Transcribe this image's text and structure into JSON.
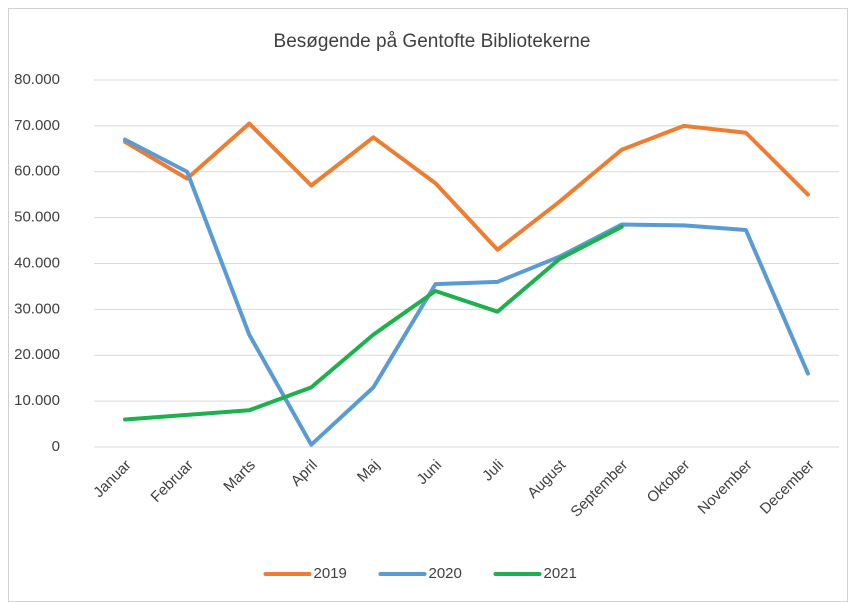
{
  "chart_data": {
    "type": "line",
    "title": "Besøgende på Gentofte Bibliotekerne",
    "categories": [
      "Januar",
      "Februar",
      "Marts",
      "April",
      "Maj",
      "Juni",
      "Juli",
      "August",
      "September",
      "Oktober",
      "November",
      "December"
    ],
    "series": [
      {
        "name": "2019",
        "color": "#ed7d31",
        "values": [
          66500,
          58500,
          70500,
          57000,
          67500,
          57500,
          43000,
          53500,
          64800,
          70000,
          68500,
          55000
        ]
      },
      {
        "name": "2020",
        "color": "#5b9bd5",
        "values": [
          67000,
          60000,
          24500,
          500,
          13000,
          35500,
          36000,
          41500,
          48500,
          48300,
          47300,
          16000
        ]
      },
      {
        "name": "2021",
        "color": "#1db04d",
        "values": [
          6000,
          7000,
          8000,
          13000,
          24500,
          34000,
          29500,
          41000,
          48000,
          null,
          null,
          null
        ]
      }
    ],
    "ylim": [
      0,
      80000
    ],
    "yticks": [
      0,
      {
        "value": 10000,
        "label": "10.000"
      },
      {
        "value": 20000,
        "label": "20.000"
      },
      {
        "value": 30000,
        "label": "30.000"
      },
      {
        "value": 40000,
        "label": "40.000"
      },
      {
        "value": 50000,
        "label": "50.000"
      },
      {
        "value": 60000,
        "label": "60.000"
      },
      {
        "value": 70000,
        "label": "70.000"
      },
      {
        "value": 80000,
        "label": "80.000"
      }
    ],
    "grid": true,
    "legend": "bottom"
  }
}
